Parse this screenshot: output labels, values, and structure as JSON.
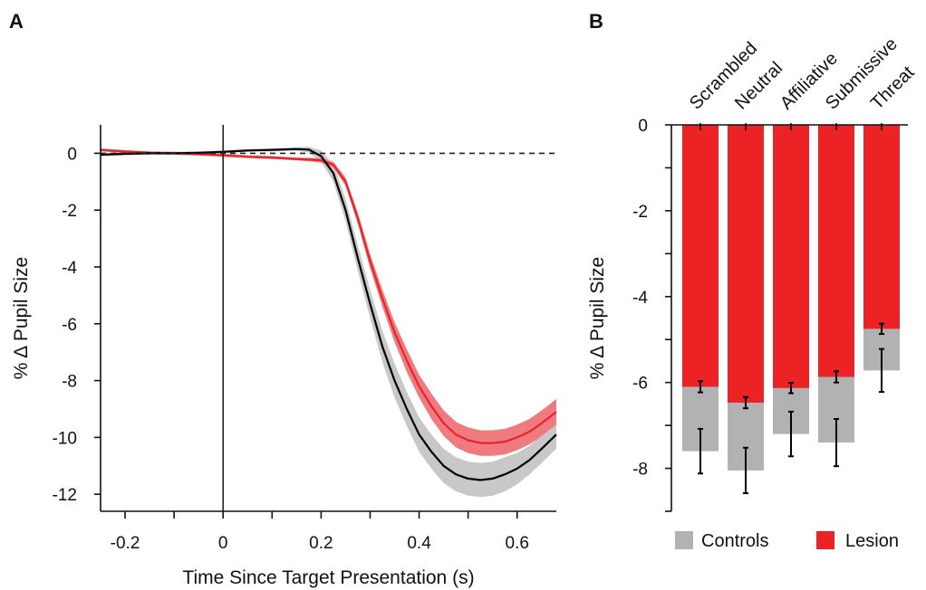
{
  "panels": {
    "a_label": "A",
    "b_label": "B"
  },
  "colors": {
    "controls_line": "#000000",
    "controls_band": "#c8c8c8",
    "lesion_line": "#e4262c",
    "lesion_band": "#f07b7e",
    "controls_bar": "#b2b2b2",
    "lesion_bar": "#ed2224"
  },
  "chart_data": [
    {
      "type": "line",
      "xlabel": "Time Since Target Presentation (s)",
      "ylabel": "% Δ Pupil Size",
      "xlim": [
        -0.25,
        0.68
      ],
      "ylim": [
        -12.6,
        1.0
      ],
      "xticks": [
        -0.2,
        0,
        0.2,
        0.4,
        0.6
      ],
      "xtick_labels": [
        "-0.2",
        "0",
        "0.2",
        "0.4",
        "0.6"
      ],
      "yticks": [
        0,
        -2,
        -4,
        -6,
        -8,
        -10,
        -12
      ],
      "ytick_labels": [
        "0",
        "-2",
        "-4",
        "-6",
        "-8",
        "-10",
        "-12"
      ],
      "reference_lines": {
        "horizontal_dashed_y": 0,
        "vertical_solid_x": 0
      },
      "x": [
        -0.25,
        -0.2,
        -0.15,
        -0.1,
        -0.05,
        0,
        0.05,
        0.1,
        0.15,
        0.175,
        0.2,
        0.225,
        0.25,
        0.275,
        0.3,
        0.325,
        0.35,
        0.375,
        0.4,
        0.425,
        0.45,
        0.475,
        0.5,
        0.525,
        0.55,
        0.575,
        0.6,
        0.625,
        0.65,
        0.68
      ],
      "series": [
        {
          "name": "Controls",
          "y": [
            -0.05,
            -0.02,
            0.0,
            0.0,
            0.02,
            0.05,
            0.1,
            0.12,
            0.15,
            0.13,
            -0.1,
            -0.7,
            -2.0,
            -3.7,
            -5.3,
            -6.8,
            -8.0,
            -9.0,
            -9.9,
            -10.5,
            -11.0,
            -11.3,
            -11.45,
            -11.5,
            -11.45,
            -11.3,
            -11.1,
            -10.8,
            -10.4,
            -9.9
          ],
          "err": [
            0.05,
            0.05,
            0.05,
            0.05,
            0.05,
            0.05,
            0.05,
            0.05,
            0.06,
            0.1,
            0.2,
            0.3,
            0.4,
            0.45,
            0.5,
            0.55,
            0.6,
            0.6,
            0.6,
            0.6,
            0.6,
            0.6,
            0.6,
            0.6,
            0.6,
            0.6,
            0.55,
            0.5,
            0.5,
            0.5
          ]
        },
        {
          "name": "Lesion",
          "y": [
            0.12,
            0.06,
            0.02,
            0.0,
            -0.03,
            -0.07,
            -0.12,
            -0.15,
            -0.2,
            -0.22,
            -0.25,
            -0.4,
            -1.0,
            -2.3,
            -3.8,
            -5.1,
            -6.3,
            -7.3,
            -8.2,
            -8.9,
            -9.5,
            -9.9,
            -10.1,
            -10.2,
            -10.2,
            -10.15,
            -10.0,
            -9.8,
            -9.5,
            -9.1
          ],
          "err": [
            0.05,
            0.05,
            0.05,
            0.05,
            0.05,
            0.05,
            0.05,
            0.05,
            0.05,
            0.06,
            0.08,
            0.1,
            0.15,
            0.2,
            0.25,
            0.3,
            0.35,
            0.4,
            0.4,
            0.45,
            0.45,
            0.45,
            0.45,
            0.45,
            0.45,
            0.45,
            0.45,
            0.45,
            0.45,
            0.45
          ]
        }
      ]
    },
    {
      "type": "bar",
      "ylabel": "% Δ Pupil Size",
      "ylim": [
        -9,
        0
      ],
      "yticks": [
        0,
        -2,
        -4,
        -6,
        -8
      ],
      "ytick_labels": [
        "0",
        "-2",
        "-4",
        "-6",
        "-8"
      ],
      "categories": [
        "Scrambled",
        "Neutral",
        "Affiliative",
        "Submissive",
        "Threat"
      ],
      "legend": {
        "placement": "bottom",
        "entries": [
          "Controls",
          "Lesion"
        ]
      },
      "series": [
        {
          "name": "Controls",
          "values": [
            -7.6,
            -8.05,
            -7.2,
            -7.4,
            -5.72
          ],
          "err": [
            0.52,
            0.53,
            0.52,
            0.55,
            0.5
          ]
        },
        {
          "name": "Lesion",
          "values": [
            -6.1,
            -6.47,
            -6.13,
            -5.87,
            -4.75
          ],
          "err": [
            0.13,
            0.13,
            0.12,
            0.13,
            0.12
          ]
        }
      ]
    }
  ]
}
